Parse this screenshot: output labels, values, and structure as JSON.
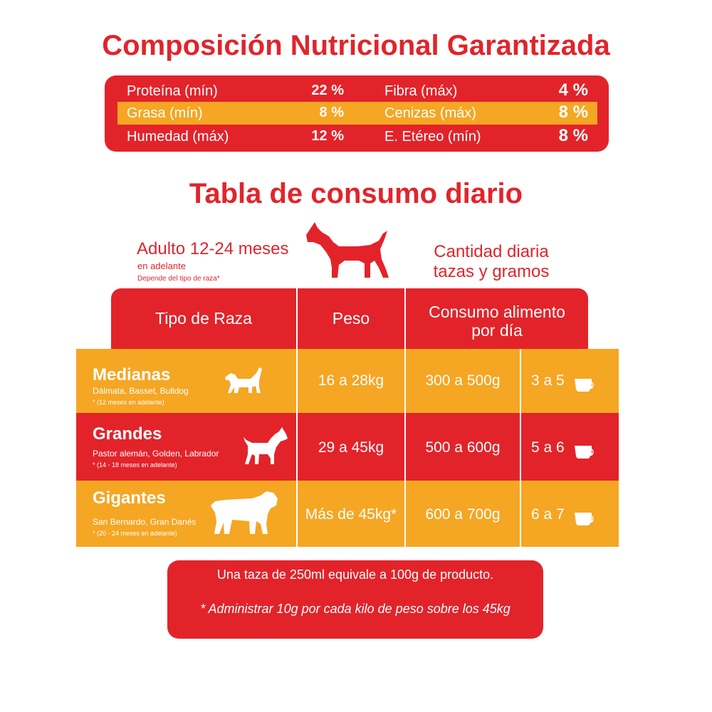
{
  "nutrition": {
    "title": "Composición Nutricional Garantizada",
    "rows": [
      {
        "l1": "Proteína (mín)",
        "v1": "22 %",
        "l2": "Fibra (máx)",
        "v2": "4 %"
      },
      {
        "l1": "Grasa (mín)",
        "v1": "8 %",
        "l2": "Cenizas (máx)",
        "v2": "8 %"
      },
      {
        "l1": "Humedad (máx)",
        "v1": "12 %",
        "l2": "E. Etéreo (mín)",
        "v2": "8 %"
      }
    ]
  },
  "consumo": {
    "title": "Tabla de consumo diario",
    "adult_label": "Adulto 12-24 meses",
    "adult_sub": "en adelante",
    "adult_note": "Depende del tipo de raza*",
    "qty_line1": "Cantidad diaria",
    "qty_line2": "tazas y gramos",
    "headers": {
      "raza": "Tipo de Raza",
      "peso": "Peso",
      "consumo_1": "Consumo alimento",
      "consumo_2": "por día"
    },
    "rows": [
      {
        "name": "Medianas",
        "examples": "Dálmata, Basset, Bulldog",
        "age": "* (12 meses en adelante)",
        "peso": "16 a 28kg",
        "gramos": "300 a 500g",
        "tazas": "3 a 5"
      },
      {
        "name": "Grandes",
        "examples": "Pastor alemán, Golden, Labrador",
        "age": "* (14 - 18 meses en adelante)",
        "peso": "29 a 45kg",
        "gramos": "500 a 600g",
        "tazas": "5 a 6"
      },
      {
        "name": "Gigantes",
        "examples": "San Bernardo, Gran Danés",
        "age": "* (20 - 24 meses en adelante)",
        "peso": "Más de 45kg*",
        "gramos": "600 a 700g",
        "tazas": "6 a 7"
      }
    ]
  },
  "footer": {
    "line1": "Una taza de 250ml equivale a 100g de producto.",
    "line2": "* Administrar 10g por cada kilo de peso sobre los 45kg"
  },
  "colors": {
    "red": "#e3232a",
    "orange": "#f5a623",
    "white": "#ffffff"
  },
  "icons": [
    "doberman-icon",
    "medium-dog-icon",
    "large-dog-icon",
    "giant-dog-icon",
    "cup-icon"
  ]
}
